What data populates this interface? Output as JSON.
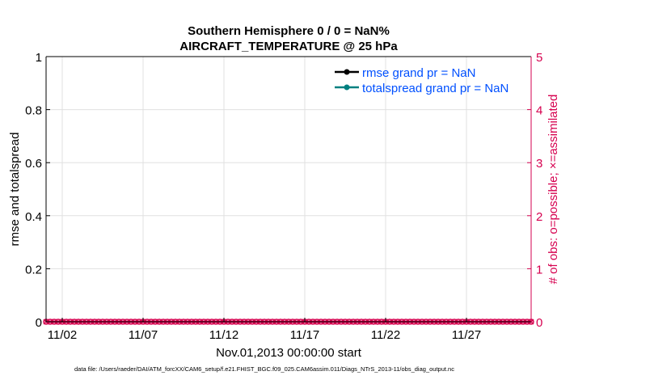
{
  "chart_data": {
    "type": "line",
    "title": [
      "Southern Hemisphere 0 / 0 = NaN%",
      "AIRCRAFT_TEMPERATURE @ 25 hPa"
    ],
    "xlabel": "Nov.01,2013 00:00:00 start",
    "ylabel": "rmse and totalspread",
    "ylabel_right": "# of obs: o=possible; ×=assimilated",
    "xlim": [
      "2013-11-01",
      "2013-12-01"
    ],
    "ylim": [
      0,
      1
    ],
    "ylim_right": [
      0,
      5
    ],
    "x_tick_labels": [
      "11/02",
      "11/07",
      "11/12",
      "11/17",
      "11/22",
      "11/27"
    ],
    "x_tick_dates": [
      "2013-11-02",
      "2013-11-07",
      "2013-11-12",
      "2013-11-17",
      "2013-11-22",
      "2013-11-27"
    ],
    "y_ticks": [
      "0",
      "0.2",
      "0.4",
      "0.6",
      "0.8",
      "1"
    ],
    "y_ticks_right": [
      "0",
      "1",
      "2",
      "3",
      "4",
      "5"
    ],
    "grid": true,
    "legend_placement": "top-right",
    "series": [
      {
        "name": "rmse grand pr = NaN",
        "axis": "left",
        "color": "#000000",
        "marker": "dot",
        "values": []
      },
      {
        "name": "totalspread grand pr = NaN",
        "axis": "left",
        "color": "#008080",
        "marker": "dot",
        "values": []
      },
      {
        "axis": "right",
        "color": "#d6004f",
        "marker": "o",
        "label": "possible",
        "values_constant": 0
      },
      {
        "axis": "right",
        "color": "#d6004f",
        "marker": "x",
        "label": "assimilated",
        "values_constant": 0
      }
    ],
    "obs_times_first": "2013-11-01T00:00",
    "obs_times_last": "2013-12-01T00:00",
    "obs_times_step_hours": 6
  },
  "footer": "data file: /Users/raeder/DAI/ATM_forcXX/CAM6_setup/f.e21.FHIST_BGC.f09_025.CAM6assim.011/Diags_NTrS_2013-11/obs_diag_output.nc",
  "colors": {
    "left_axis": "#000000",
    "right_axis": "#d6004f",
    "legend_text": "#0050ff",
    "grid": "#e0e0e0"
  }
}
